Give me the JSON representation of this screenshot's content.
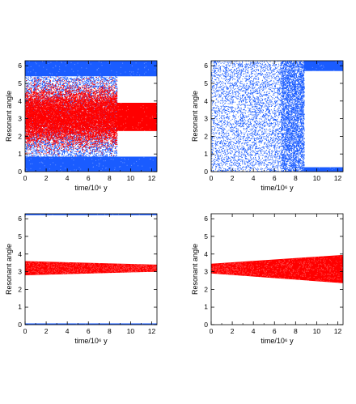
{
  "chart_data": [
    {
      "type": "scatter",
      "xlabel": "time/10⁶ y",
      "ylabel": "Resonant angle",
      "xlim": [
        0,
        12.5
      ],
      "ylim": [
        0,
        6.283
      ],
      "xticks": [
        0,
        2,
        4,
        6,
        8,
        10,
        12
      ],
      "yticks": [
        0,
        1,
        2,
        3,
        4,
        5,
        6
      ],
      "xtick_labels": [
        "0",
        "2",
        "4",
        "6",
        "8",
        "10",
        "12"
      ],
      "ytick_labels": [
        "0",
        "1",
        "2",
        "3",
        "4",
        "5",
        "6"
      ],
      "series": [
        {
          "color": "#1a5cff",
          "regions": [
            {
              "x": [
                0,
                12.5
              ],
              "y": [
                5.4,
                6.283
              ],
              "density": "solid"
            },
            {
              "x": [
                0,
                12.5
              ],
              "y": [
                0,
                0.85
              ],
              "density": "solid"
            },
            {
              "x": [
                0,
                8.7
              ],
              "y": [
                0.85,
                5.4
              ],
              "density": "sparse"
            }
          ]
        },
        {
          "color": "#ff0000",
          "regions": [
            {
              "x": [
                0,
                8.7
              ],
              "y": [
                0.9,
                5.4
              ],
              "center": 3.14,
              "density": "gaussian"
            },
            {
              "x": [
                8.7,
                12.5
              ],
              "y": [
                2.3,
                3.9
              ],
              "center": 3.14,
              "density": "solid"
            }
          ]
        }
      ]
    },
    {
      "type": "scatter",
      "xlabel": "time/10⁶ y",
      "ylabel": "Resonant angle",
      "xlim": [
        0,
        12.5
      ],
      "ylim": [
        0,
        6.283
      ],
      "xticks": [
        0,
        2,
        4,
        6,
        8,
        10,
        12
      ],
      "yticks": [
        0,
        1,
        2,
        3,
        4,
        5,
        6
      ],
      "xtick_labels": [
        "0",
        "2",
        "4",
        "6",
        "8",
        "10",
        "12"
      ],
      "ytick_labels": [
        "0",
        "1",
        "2",
        "3",
        "4",
        "5",
        "6"
      ],
      "series": [
        {
          "color": "#1a5cff",
          "regions": [
            {
              "x": [
                0,
                8.8
              ],
              "y": [
                0,
                6.283
              ],
              "density": "uniform"
            },
            {
              "x": [
                8.8,
                12.5
              ],
              "y": [
                5.7,
                6.283
              ],
              "density": "solid"
            },
            {
              "x": [
                8.8,
                12.5
              ],
              "y": [
                0,
                0.25
              ],
              "density": "solid"
            }
          ]
        }
      ]
    },
    {
      "type": "scatter",
      "xlabel": "time/10⁶ y",
      "ylabel": "Resonant angle",
      "xlim": [
        0,
        12.5
      ],
      "ylim": [
        0,
        6.283
      ],
      "xticks": [
        0,
        2,
        4,
        6,
        8,
        10,
        12
      ],
      "yticks": [
        0,
        1,
        2,
        3,
        4,
        5,
        6
      ],
      "xtick_labels": [
        "0",
        "2",
        "4",
        "6",
        "8",
        "10",
        "12"
      ],
      "ytick_labels": [
        "0",
        "1",
        "2",
        "3",
        "4",
        "5",
        "6"
      ],
      "series": [
        {
          "color": "#1a5cff",
          "regions": [
            {
              "x": [
                0,
                12.5
              ],
              "y": [
                6.2,
                6.283
              ],
              "density": "solid"
            },
            {
              "x": [
                0,
                12.5
              ],
              "y": [
                0,
                0.07
              ],
              "density": "solid"
            }
          ]
        },
        {
          "color": "#ff0000",
          "band": {
            "x": [
              0,
              12.5
            ],
            "lower": [
              2.8,
              3.0
            ],
            "upper": [
              3.6,
              3.4
            ]
          }
        }
      ]
    },
    {
      "type": "scatter",
      "xlabel": "time/10⁶ y",
      "ylabel": "Resonant angle",
      "xlim": [
        0,
        12.5
      ],
      "ylim": [
        0,
        6.283
      ],
      "xticks": [
        0,
        2,
        4,
        6,
        8,
        10,
        12
      ],
      "yticks": [
        0,
        1,
        2,
        3,
        4,
        5,
        6
      ],
      "xtick_labels": [
        "0",
        "2",
        "4",
        "6",
        "8",
        "10",
        "12"
      ],
      "ytick_labels": [
        "0",
        "1",
        "2",
        "3",
        "4",
        "5",
        "6"
      ],
      "series": [
        {
          "color": "#ff0000",
          "band": {
            "x": [
              0,
              12.5
            ],
            "lower": [
              2.9,
              2.35
            ],
            "upper": [
              3.45,
              3.95
            ]
          }
        }
      ]
    }
  ]
}
